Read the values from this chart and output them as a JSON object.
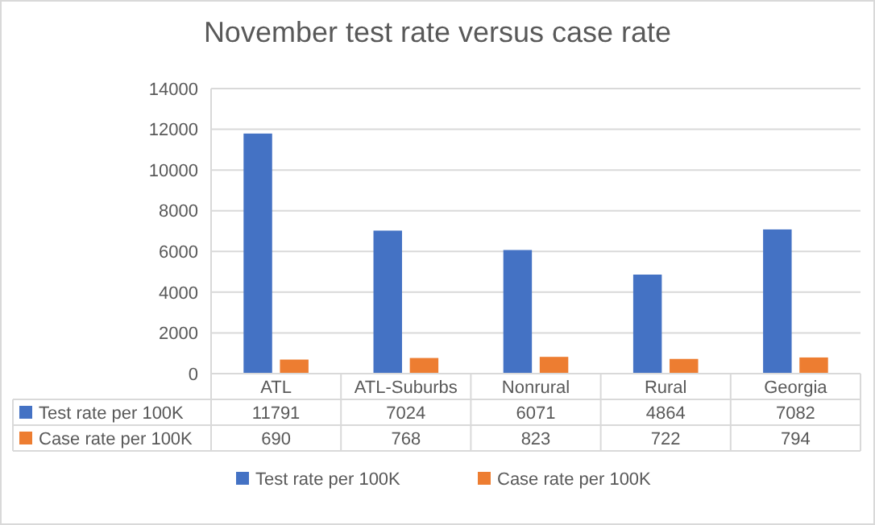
{
  "chart_data": {
    "type": "bar",
    "title": "November test rate versus case rate",
    "categories": [
      "ATL",
      "ATL-Suburbs",
      "Nonrural",
      "Rural",
      "Georgia"
    ],
    "series": [
      {
        "name": "Test rate per 100K",
        "color": "#4472c4",
        "values": [
          11791,
          7024,
          6071,
          4864,
          7082
        ]
      },
      {
        "name": "Case rate per 100K",
        "color": "#ed7d31",
        "values": [
          690,
          768,
          823,
          722,
          794
        ]
      }
    ],
    "ylim": [
      0,
      14000
    ],
    "yticks": [
      0,
      2000,
      4000,
      6000,
      8000,
      10000,
      12000,
      14000
    ],
    "grid": "y",
    "legend": "bottom",
    "data_labels": true
  }
}
